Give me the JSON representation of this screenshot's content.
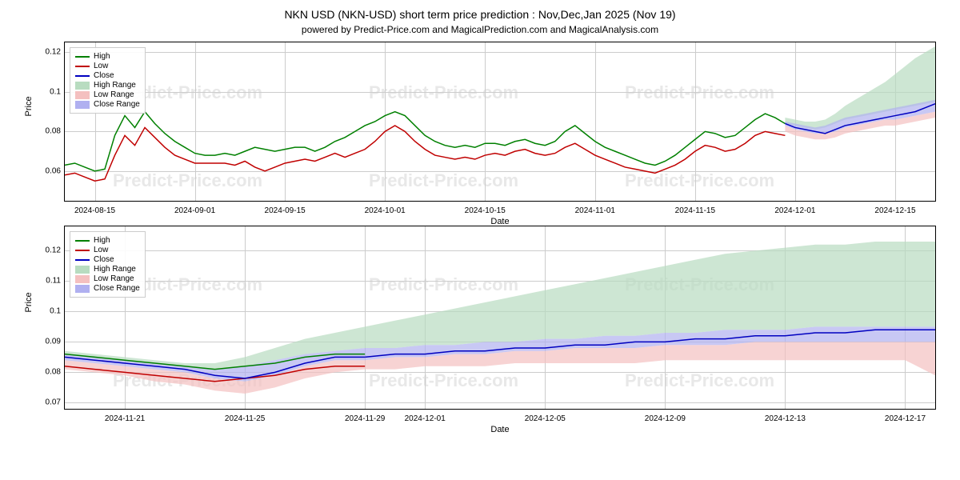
{
  "title": "NKN USD (NKN-USD) short term price prediction : Nov,Dec,Jan 2025 (Nov 19)",
  "subtitle": "powered by Predict-Price.com and MagicalPrediction.com and MagicalAnalysis.com",
  "watermark": "Predict-Price.com",
  "xlabel": "Date",
  "ylabel": "Price",
  "colors": {
    "high": "#008000",
    "low": "#c00000",
    "close": "#0000c0",
    "high_range": "#b8dcc0",
    "low_range": "#f4c0c0",
    "close_range": "#b0b0f0",
    "grid": "#cccccc",
    "border": "#000000",
    "bg": "#ffffff",
    "watermark": "#e8e8e8"
  },
  "legend": [
    {
      "type": "line",
      "label": "High",
      "color": "#008000"
    },
    {
      "type": "line",
      "label": "Low",
      "color": "#c00000"
    },
    {
      "type": "line",
      "label": "Close",
      "color": "#0000c0"
    },
    {
      "type": "patch",
      "label": "High Range",
      "color": "#b8dcc0"
    },
    {
      "type": "patch",
      "label": "Low Range",
      "color": "#f4c0c0"
    },
    {
      "type": "patch",
      "label": "Close Range",
      "color": "#b0b0f0"
    }
  ],
  "chart1": {
    "ylim": [
      0.045,
      0.125
    ],
    "yticks": [
      0.06,
      0.08,
      0.1,
      0.12
    ],
    "xticks": [
      "2024-08-15",
      "2024-09-01",
      "2024-09-15",
      "2024-10-01",
      "2024-10-15",
      "2024-11-01",
      "2024-11-15",
      "2024-12-01",
      "2024-12-15"
    ],
    "xtick_pos": [
      3,
      13,
      22,
      32,
      42,
      53,
      63,
      73,
      83
    ],
    "n": 88,
    "high": [
      0.063,
      0.064,
      0.062,
      0.06,
      0.061,
      0.078,
      0.088,
      0.082,
      0.09,
      0.084,
      0.079,
      0.075,
      0.072,
      0.069,
      0.068,
      0.068,
      0.069,
      0.068,
      0.07,
      0.072,
      0.071,
      0.07,
      0.071,
      0.072,
      0.072,
      0.07,
      0.072,
      0.075,
      0.077,
      0.08,
      0.083,
      0.085,
      0.088,
      0.09,
      0.088,
      0.083,
      0.078,
      0.075,
      0.073,
      0.072,
      0.073,
      0.072,
      0.074,
      0.074,
      0.073,
      0.075,
      0.076,
      0.074,
      0.073,
      0.075,
      0.08,
      0.083,
      0.079,
      0.075,
      0.072,
      0.07,
      0.068,
      0.066,
      0.064,
      0.063,
      0.065,
      0.068,
      0.072,
      0.076,
      0.08,
      0.079,
      0.077,
      0.078,
      0.082,
      0.086,
      0.089,
      0.087,
      0.084
    ],
    "low": [
      0.058,
      0.059,
      0.057,
      0.055,
      0.056,
      0.068,
      0.078,
      0.073,
      0.082,
      0.077,
      0.072,
      0.068,
      0.066,
      0.064,
      0.064,
      0.064,
      0.064,
      0.063,
      0.065,
      0.062,
      0.06,
      0.062,
      0.064,
      0.065,
      0.066,
      0.065,
      0.067,
      0.069,
      0.067,
      0.069,
      0.071,
      0.075,
      0.08,
      0.083,
      0.08,
      0.075,
      0.071,
      0.068,
      0.067,
      0.066,
      0.067,
      0.066,
      0.068,
      0.069,
      0.068,
      0.07,
      0.071,
      0.069,
      0.068,
      0.069,
      0.072,
      0.074,
      0.071,
      0.068,
      0.066,
      0.064,
      0.062,
      0.061,
      0.06,
      0.059,
      0.061,
      0.063,
      0.066,
      0.07,
      0.073,
      0.072,
      0.07,
      0.071,
      0.074,
      0.078,
      0.08,
      0.079,
      0.078
    ],
    "close_forecast": {
      "start": 72,
      "vals": [
        0.084,
        0.082,
        0.081,
        0.08,
        0.079,
        0.081,
        0.083,
        0.084,
        0.085,
        0.086,
        0.087,
        0.088,
        0.089,
        0.09,
        0.092,
        0.094
      ]
    },
    "high_range": {
      "start": 72,
      "top": [
        0.087,
        0.086,
        0.085,
        0.085,
        0.086,
        0.089,
        0.093,
        0.096,
        0.099,
        0.102,
        0.105,
        0.109,
        0.113,
        0.117,
        0.12,
        0.123
      ],
      "bot": [
        0.084,
        0.083,
        0.082,
        0.081,
        0.082,
        0.084,
        0.086,
        0.087,
        0.088,
        0.089,
        0.09,
        0.091,
        0.092,
        0.093,
        0.094,
        0.095
      ]
    },
    "close_range": {
      "start": 72,
      "top": [
        0.085,
        0.084,
        0.083,
        0.082,
        0.083,
        0.085,
        0.087,
        0.088,
        0.089,
        0.09,
        0.091,
        0.092,
        0.093,
        0.094,
        0.095,
        0.096
      ],
      "bot": [
        0.083,
        0.081,
        0.08,
        0.079,
        0.079,
        0.08,
        0.082,
        0.083,
        0.084,
        0.085,
        0.086,
        0.086,
        0.087,
        0.088,
        0.089,
        0.09
      ]
    },
    "low_range": {
      "start": 72,
      "top": [
        0.083,
        0.081,
        0.08,
        0.079,
        0.079,
        0.08,
        0.082,
        0.083,
        0.084,
        0.085,
        0.086,
        0.086,
        0.087,
        0.088,
        0.089,
        0.09
      ],
      "bot": [
        0.08,
        0.078,
        0.077,
        0.076,
        0.076,
        0.077,
        0.079,
        0.08,
        0.081,
        0.082,
        0.083,
        0.083,
        0.084,
        0.085,
        0.086,
        0.087
      ]
    }
  },
  "chart2": {
    "ylim": [
      0.068,
      0.128
    ],
    "yticks": [
      0.07,
      0.08,
      0.09,
      0.1,
      0.11,
      0.12
    ],
    "xticks": [
      "2024-11-21",
      "2024-11-25",
      "2024-11-29",
      "2024-12-01",
      "2024-12-05",
      "2024-12-09",
      "2024-12-13",
      "2024-12-17"
    ],
    "xtick_pos": [
      2,
      6,
      10,
      12,
      16,
      20,
      24,
      28
    ],
    "n": 30,
    "high": [
      0.086,
      0.085,
      0.084,
      0.083,
      0.082,
      0.081,
      0.082,
      0.083,
      0.085,
      0.086,
      0.086
    ],
    "low": [
      0.082,
      0.081,
      0.08,
      0.079,
      0.078,
      0.077,
      0.078,
      0.079,
      0.081,
      0.082,
      0.082
    ],
    "close": [
      0.085,
      0.084,
      0.083,
      0.082,
      0.081,
      0.079,
      0.078,
      0.08,
      0.083,
      0.085,
      0.085
    ],
    "close_forecast": {
      "start": 10,
      "vals": [
        0.085,
        0.086,
        0.086,
        0.087,
        0.087,
        0.088,
        0.088,
        0.089,
        0.089,
        0.09,
        0.09,
        0.091,
        0.091,
        0.092,
        0.092,
        0.093,
        0.093,
        0.094,
        0.094,
        0.094
      ]
    },
    "high_range": {
      "start": 0,
      "top": [
        0.087,
        0.086,
        0.085,
        0.084,
        0.083,
        0.083,
        0.085,
        0.088,
        0.091,
        0.093,
        0.095,
        0.097,
        0.099,
        0.101,
        0.103,
        0.105,
        0.107,
        0.109,
        0.111,
        0.113,
        0.115,
        0.117,
        0.119,
        0.12,
        0.121,
        0.122,
        0.122,
        0.123,
        0.123,
        0.123
      ],
      "bot": [
        0.086,
        0.085,
        0.084,
        0.083,
        0.082,
        0.081,
        0.082,
        0.084,
        0.086,
        0.087,
        0.088,
        0.088,
        0.089,
        0.089,
        0.09,
        0.09,
        0.091,
        0.091,
        0.092,
        0.092,
        0.093,
        0.093,
        0.094,
        0.094,
        0.094,
        0.095,
        0.095,
        0.095,
        0.095,
        0.095
      ]
    },
    "close_range": {
      "start": 0,
      "top": [
        0.086,
        0.085,
        0.084,
        0.083,
        0.082,
        0.081,
        0.082,
        0.084,
        0.086,
        0.087,
        0.088,
        0.088,
        0.089,
        0.089,
        0.09,
        0.09,
        0.091,
        0.091,
        0.092,
        0.092,
        0.093,
        0.093,
        0.094,
        0.094,
        0.094,
        0.095,
        0.095,
        0.095,
        0.095,
        0.095
      ],
      "bot": [
        0.084,
        0.083,
        0.082,
        0.081,
        0.08,
        0.078,
        0.077,
        0.079,
        0.082,
        0.084,
        0.084,
        0.085,
        0.085,
        0.086,
        0.086,
        0.087,
        0.087,
        0.088,
        0.088,
        0.088,
        0.089,
        0.089,
        0.089,
        0.09,
        0.09,
        0.09,
        0.09,
        0.09,
        0.09,
        0.09
      ]
    },
    "low_range": {
      "start": 0,
      "top": [
        0.084,
        0.083,
        0.082,
        0.081,
        0.08,
        0.078,
        0.077,
        0.079,
        0.082,
        0.084,
        0.084,
        0.085,
        0.085,
        0.086,
        0.086,
        0.087,
        0.087,
        0.088,
        0.088,
        0.088,
        0.089,
        0.089,
        0.089,
        0.09,
        0.09,
        0.09,
        0.09,
        0.09,
        0.09,
        0.09
      ],
      "bot": [
        0.081,
        0.08,
        0.079,
        0.077,
        0.076,
        0.074,
        0.073,
        0.075,
        0.078,
        0.08,
        0.081,
        0.081,
        0.082,
        0.082,
        0.082,
        0.083,
        0.083,
        0.083,
        0.083,
        0.083,
        0.084,
        0.084,
        0.084,
        0.084,
        0.084,
        0.084,
        0.084,
        0.084,
        0.084,
        0.079
      ]
    }
  }
}
